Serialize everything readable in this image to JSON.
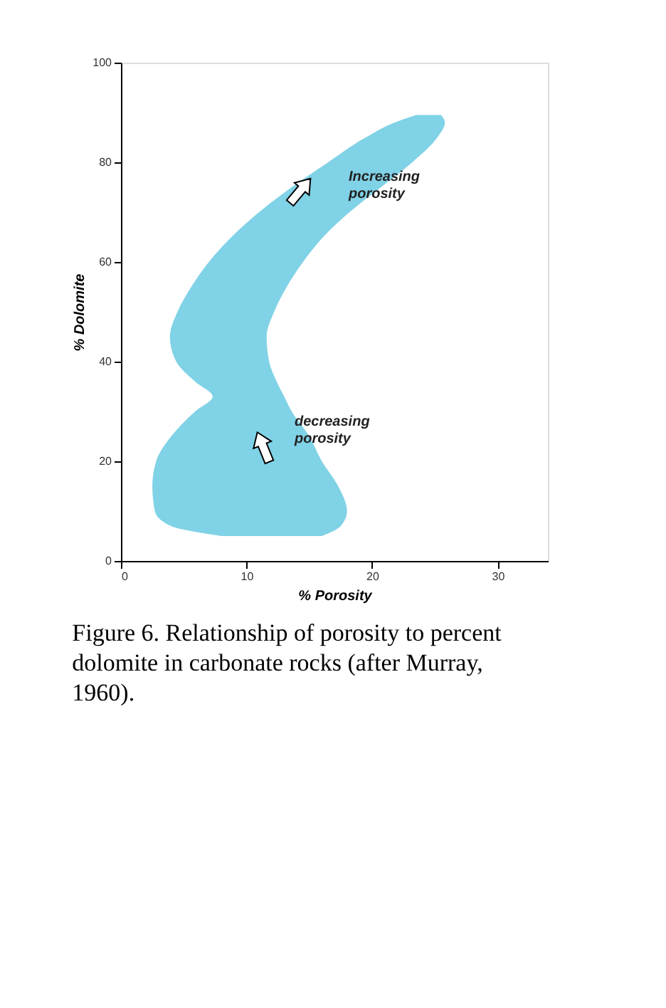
{
  "chart_data": {
    "type": "area",
    "orientation": "horizontal",
    "xlabel": "% Porosity",
    "ylabel": "% Dolomite",
    "xlim": [
      0,
      34
    ],
    "ylim": [
      0,
      100
    ],
    "xticks": [
      0,
      10,
      20,
      30
    ],
    "yticks": [
      0,
      20,
      40,
      60,
      80,
      100
    ],
    "grid": false,
    "series": [
      {
        "color": "#80d2e6",
        "values": [
          null,
          null,
          null,
          null,
          null,
          null,
          null,
          null,
          null,
          null,
          null,
          null,
          null,
          null,
          null,
          null,
          null,
          null,
          null,
          null,
          null
        ],
        "x": [
          5,
          7,
          10,
          15,
          20,
          25,
          30,
          33,
          36,
          40,
          45,
          50,
          55,
          60,
          65,
          70,
          75,
          80,
          85,
          88,
          89.5
        ],
        "lower": [
          8,
          4,
          2.7,
          2.5,
          2.8,
          4.0,
          5.9,
          7.3,
          5.9,
          4.4,
          3.9,
          4.5,
          5.6,
          7.0,
          8.8,
          11,
          13.6,
          16.5,
          19.5,
          21.8,
          23.5
        ],
        "upper": [
          16,
          17.5,
          18,
          17.3,
          16,
          15,
          13.6,
          13,
          12.4,
          11.8,
          11.6,
          12.2,
          13.2,
          14.5,
          16.1,
          18.2,
          20.7,
          23.2,
          25.2,
          25.8,
          25.5
        ]
      }
    ],
    "annotations": [
      "Increasing\nporosity",
      "decreasing\nporosity",
      "Figure 6. Relationship of porosity to percent dolomite in carbonate rocks (after Murray, 1960)."
    ]
  }
}
